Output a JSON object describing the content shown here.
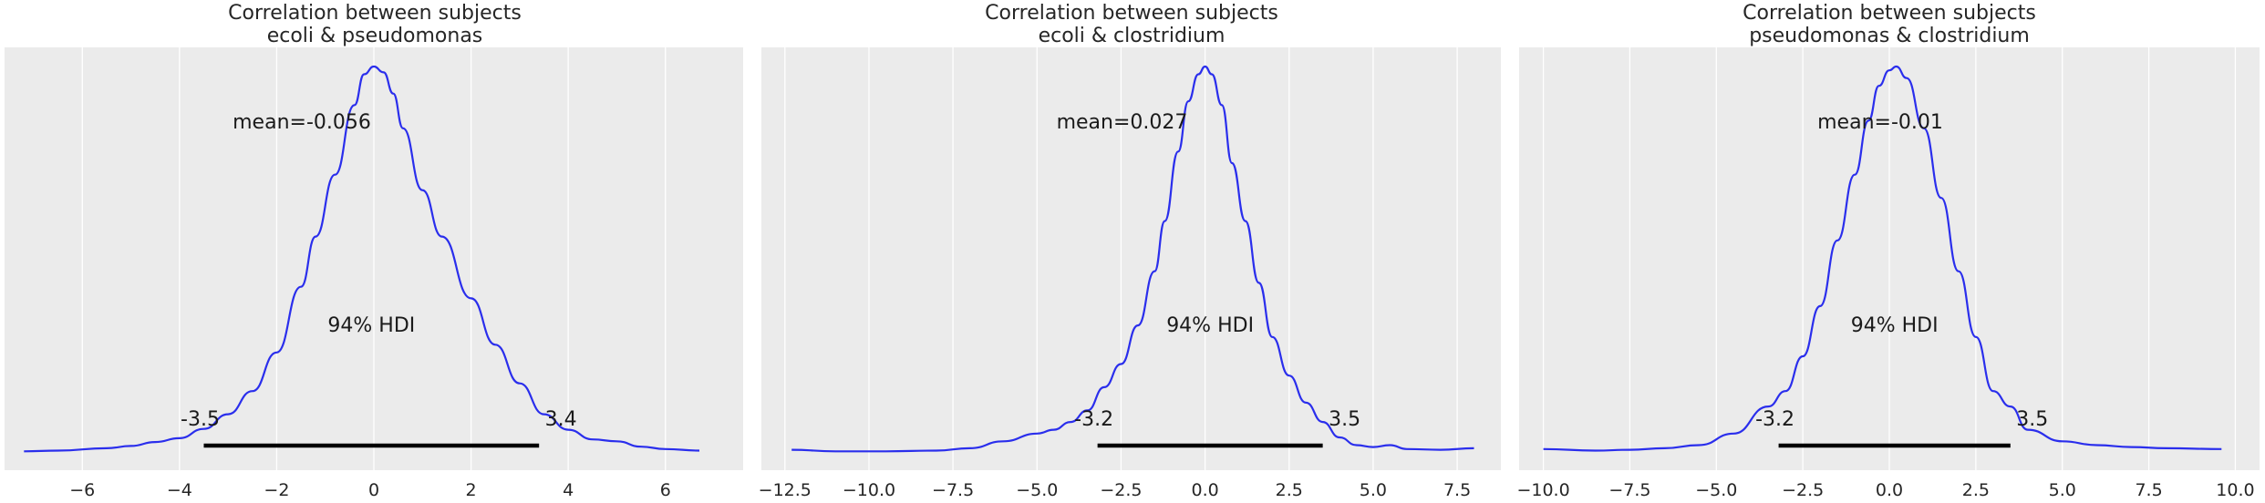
{
  "chart_data": [
    {
      "type": "area",
      "title": "Correlation between subjects\necoli & pseudomonas",
      "xlim": [
        -7.6,
        7.6
      ],
      "xticks": [
        -6,
        -4,
        -2,
        0,
        2,
        4,
        6
      ],
      "xtick_labels": [
        "−6",
        "−4",
        "−2",
        "0",
        "2",
        "4",
        "6"
      ],
      "mean_label": "mean=-0.056",
      "hdi_label": "94% HDI",
      "hdi": [
        -3.5,
        3.4
      ],
      "hdi_low_label": "-3.5",
      "hdi_high_label": "3.4",
      "density": {
        "x": [
          -7.2,
          -6.5,
          -5.5,
          -5.0,
          -4.5,
          -4.0,
          -3.5,
          -3.0,
          -2.5,
          -2.0,
          -1.5,
          -1.2,
          -0.8,
          -0.4,
          -0.2,
          0.0,
          0.2,
          0.4,
          0.6,
          1.0,
          1.4,
          2.0,
          2.5,
          3.0,
          3.5,
          4.0,
          4.5,
          5.0,
          5.5,
          6.0,
          6.7
        ],
        "y": [
          0.004,
          0.006,
          0.012,
          0.018,
          0.028,
          0.038,
          0.062,
          0.1,
          0.16,
          0.26,
          0.43,
          0.56,
          0.72,
          0.9,
          0.98,
          1.0,
          0.985,
          0.93,
          0.84,
          0.68,
          0.56,
          0.4,
          0.28,
          0.18,
          0.1,
          0.06,
          0.035,
          0.03,
          0.016,
          0.01,
          0.006
        ]
      }
    },
    {
      "type": "area",
      "title": "Correlation between subjects\necoli & clostridium",
      "xlim": [
        -13.2,
        8.8
      ],
      "xticks": [
        -12.5,
        -10,
        -7.5,
        -5,
        -2.5,
        0,
        2.5,
        5,
        7.5
      ],
      "xtick_labels": [
        "−12.5",
        "−10.0",
        "−7.5",
        "−5.0",
        "−2.5",
        "0.0",
        "2.5",
        "5.0",
        "7.5"
      ],
      "mean_label": "mean=0.027",
      "hdi_label": "94% HDI",
      "hdi": [
        -3.2,
        3.5
      ],
      "hdi_low_label": "-3.2",
      "hdi_high_label": "3.5",
      "density": {
        "x": [
          -12.3,
          -11.0,
          -9.5,
          -8.0,
          -7.0,
          -6.0,
          -5.0,
          -4.5,
          -4.0,
          -3.5,
          -3.0,
          -2.5,
          -2.0,
          -1.5,
          -1.2,
          -0.8,
          -0.5,
          -0.2,
          0.0,
          0.2,
          0.5,
          0.8,
          1.2,
          1.6,
          2.0,
          2.5,
          3.0,
          3.5,
          4.0,
          4.5,
          5.0,
          5.5,
          6.0,
          7.0,
          8.0
        ],
        "y": [
          0.008,
          0.004,
          0.004,
          0.006,
          0.012,
          0.03,
          0.05,
          0.06,
          0.08,
          0.11,
          0.17,
          0.23,
          0.33,
          0.47,
          0.6,
          0.78,
          0.91,
          0.98,
          1.0,
          0.98,
          0.9,
          0.75,
          0.6,
          0.44,
          0.3,
          0.2,
          0.13,
          0.08,
          0.04,
          0.02,
          0.015,
          0.02,
          0.01,
          0.008,
          0.012
        ]
      }
    },
    {
      "type": "area",
      "title": "Correlation between subjects\npseudomonas & clostridium",
      "xlim": [
        -10.7,
        10.7
      ],
      "xticks": [
        -10,
        -7.5,
        -5,
        -2.5,
        0,
        2.5,
        5,
        7.5,
        10
      ],
      "xtick_labels": [
        "−10.0",
        "−7.5",
        "−5.0",
        "−2.5",
        "0.0",
        "2.5",
        "5.0",
        "7.5",
        "10.0"
      ],
      "mean_label": "mean=-0.01",
      "hdi_label": "94% HDI",
      "hdi": [
        -3.2,
        3.5
      ],
      "hdi_low_label": "-3.2",
      "hdi_high_label": "3.5",
      "density": {
        "x": [
          -10.0,
          -8.5,
          -7.5,
          -6.5,
          -5.5,
          -4.5,
          -3.5,
          -3.0,
          -2.5,
          -2.0,
          -1.5,
          -1.0,
          -0.6,
          -0.3,
          0.0,
          0.2,
          0.5,
          1.0,
          1.5,
          2.0,
          2.5,
          3.0,
          3.5,
          4.0,
          5.0,
          6.0,
          7.0,
          8.0,
          9.6
        ],
        "y": [
          0.01,
          0.006,
          0.008,
          0.012,
          0.02,
          0.05,
          0.12,
          0.16,
          0.25,
          0.38,
          0.55,
          0.72,
          0.86,
          0.95,
          0.99,
          1.0,
          0.97,
          0.84,
          0.66,
          0.47,
          0.3,
          0.16,
          0.12,
          0.06,
          0.03,
          0.02,
          0.015,
          0.012,
          0.01
        ]
      }
    }
  ]
}
